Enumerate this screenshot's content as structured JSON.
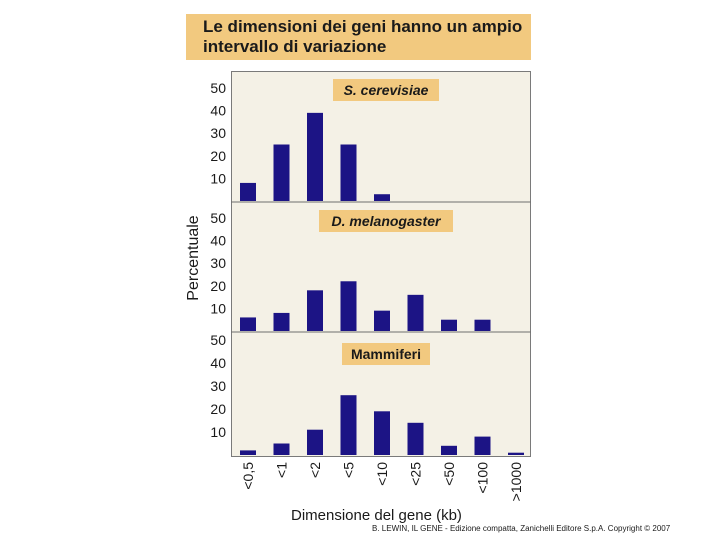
{
  "title": {
    "line1": "Le dimensioni dei geni hanno un ampio",
    "line2": "intervallo di variazione"
  },
  "chart_data": {
    "type": "bar",
    "title": "Le dimensioni dei geni hanno un ampio intervallo di variazione",
    "ylabel": "Percentuale",
    "xlabel": "Dimensione del gene (kb)",
    "categories": [
      "<0,5",
      "<1",
      "<2",
      "<5",
      "<10",
      "<25",
      "<50",
      "<100",
      ">1000"
    ],
    "yticks": [
      10,
      20,
      30,
      40,
      50
    ],
    "ylim": [
      0,
      52
    ],
    "color": "#1c1485",
    "panels": [
      {
        "name": "S. cerevisiae",
        "italic": true,
        "values": [
          8,
          25,
          39,
          25,
          3,
          0,
          0,
          0,
          0
        ]
      },
      {
        "name": "D. melanogaster",
        "italic": true,
        "values": [
          6,
          8,
          18,
          22,
          9,
          16,
          5,
          5,
          0
        ]
      },
      {
        "name": "Mammiferi",
        "italic": false,
        "values": [
          2,
          5,
          11,
          26,
          19,
          14,
          4,
          8,
          1
        ]
      }
    ]
  },
  "copyright": "B. LEWIN, IL GENE - Edizione compatta, Zanichelli Editore S.p.A. Copyright © 2007"
}
